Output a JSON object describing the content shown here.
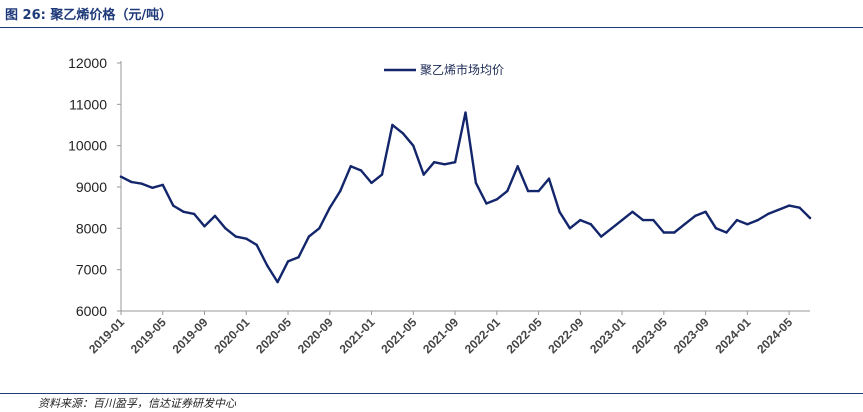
{
  "figure_title": "图 26:  聚乙烯价格（元/吨）",
  "source_note": "资料来源：百川盈孚，信达证券研发中心",
  "chart_data": {
    "type": "line",
    "title": "",
    "xlabel": "",
    "ylabel": "",
    "ylim": [
      6000,
      12000
    ],
    "yticks": [
      6000,
      7000,
      8000,
      9000,
      10000,
      11000,
      12000
    ],
    "xticks": [
      "2019-01",
      "2019-05",
      "2019-09",
      "2020-01",
      "2020-05",
      "2020-09",
      "2021-01",
      "2021-05",
      "2021-09",
      "2022-01",
      "2022-05",
      "2022-09",
      "2023-01",
      "2023-05",
      "2023-09",
      "2024-01",
      "2024-05"
    ],
    "x_range": [
      "2019-01",
      "2024-07"
    ],
    "legend": {
      "position": "top-center"
    },
    "grid": false,
    "colors": {
      "series": "#13266b"
    },
    "series": [
      {
        "name": "聚乙烯市场均价",
        "points": [
          [
            "2019-01",
            9250
          ],
          [
            "2019-02",
            9120
          ],
          [
            "2019-03",
            9080
          ],
          [
            "2019-04",
            8980
          ],
          [
            "2019-05",
            9050
          ],
          [
            "2019-06",
            8550
          ],
          [
            "2019-07",
            8400
          ],
          [
            "2019-08",
            8350
          ],
          [
            "2019-09",
            8050
          ],
          [
            "2019-10",
            8300
          ],
          [
            "2019-11",
            8000
          ],
          [
            "2019-12",
            7800
          ],
          [
            "2020-01",
            7750
          ],
          [
            "2020-02",
            7600
          ],
          [
            "2020-03",
            7100
          ],
          [
            "2020-04",
            6700
          ],
          [
            "2020-05",
            7200
          ],
          [
            "2020-06",
            7300
          ],
          [
            "2020-07",
            7800
          ],
          [
            "2020-08",
            8000
          ],
          [
            "2020-09",
            8500
          ],
          [
            "2020-10",
            8900
          ],
          [
            "2020-11",
            9500
          ],
          [
            "2020-12",
            9400
          ],
          [
            "2021-01",
            9100
          ],
          [
            "2021-02",
            9300
          ],
          [
            "2021-03",
            10500
          ],
          [
            "2021-04",
            10300
          ],
          [
            "2021-05",
            10000
          ],
          [
            "2021-06",
            9300
          ],
          [
            "2021-07",
            9600
          ],
          [
            "2021-08",
            9550
          ],
          [
            "2021-09",
            9600
          ],
          [
            "2021-10",
            10800
          ],
          [
            "2021-11",
            9100
          ],
          [
            "2021-12",
            8600
          ],
          [
            "2022-01",
            8700
          ],
          [
            "2022-02",
            8900
          ],
          [
            "2022-03",
            9500
          ],
          [
            "2022-04",
            8900
          ],
          [
            "2022-05",
            8900
          ],
          [
            "2022-06",
            9200
          ],
          [
            "2022-07",
            8400
          ],
          [
            "2022-08",
            8000
          ],
          [
            "2022-09",
            8200
          ],
          [
            "2022-10",
            8100
          ],
          [
            "2022-11",
            7800
          ],
          [
            "2022-12",
            8000
          ],
          [
            "2023-01",
            8200
          ],
          [
            "2023-02",
            8400
          ],
          [
            "2023-03",
            8200
          ],
          [
            "2023-04",
            8200
          ],
          [
            "2023-05",
            7900
          ],
          [
            "2023-06",
            7900
          ],
          [
            "2023-07",
            8100
          ],
          [
            "2023-08",
            8300
          ],
          [
            "2023-09",
            8400
          ],
          [
            "2023-10",
            8000
          ],
          [
            "2023-11",
            7900
          ],
          [
            "2023-12",
            8200
          ],
          [
            "2024-01",
            8100
          ],
          [
            "2024-02",
            8200
          ],
          [
            "2024-03",
            8350
          ],
          [
            "2024-04",
            8450
          ],
          [
            "2024-05",
            8550
          ],
          [
            "2024-06",
            8500
          ],
          [
            "2024-07",
            8250
          ]
        ]
      }
    ]
  }
}
